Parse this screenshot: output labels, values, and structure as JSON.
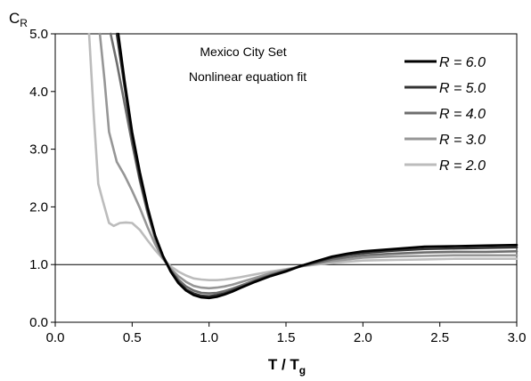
{
  "chart_data": {
    "type": "line",
    "ylabel_main": "C",
    "ylabel_sub": "R",
    "xlabel_main": "T / T",
    "xlabel_sub": "g",
    "annotation": [
      "Mexico City  Set",
      "Nonlinear equation fit"
    ],
    "xlim": [
      0.0,
      3.0
    ],
    "ylim": [
      0.0,
      5.0
    ],
    "xticks": [
      "0.0",
      "0.5",
      "1.0",
      "1.5",
      "2.0",
      "2.5",
      "3.0"
    ],
    "yticks": [
      "0.0",
      "1.0",
      "2.0",
      "3.0",
      "4.0",
      "5.0"
    ],
    "reference_line_y": 1.0,
    "grid": false,
    "legend_position": "top-right",
    "series": [
      {
        "name": "R = 6.0",
        "color": "#000000",
        "x": [
          0.41,
          0.45,
          0.5,
          0.55,
          0.6,
          0.65,
          0.7,
          0.75,
          0.8,
          0.85,
          0.9,
          0.95,
          1.0,
          1.05,
          1.1,
          1.15,
          1.2,
          1.3,
          1.4,
          1.5,
          1.6,
          1.7,
          1.8,
          1.9,
          2.0,
          2.2,
          2.4,
          2.6,
          2.8,
          3.0
        ],
        "y": [
          5.0,
          4.2,
          3.3,
          2.6,
          2.0,
          1.5,
          1.15,
          0.88,
          0.68,
          0.55,
          0.47,
          0.43,
          0.42,
          0.44,
          0.48,
          0.53,
          0.59,
          0.7,
          0.8,
          0.88,
          0.98,
          1.06,
          1.14,
          1.19,
          1.23,
          1.27,
          1.31,
          1.32,
          1.33,
          1.34
        ]
      },
      {
        "name": "R = 5.0",
        "color": "#333333",
        "x": [
          0.4,
          0.45,
          0.5,
          0.55,
          0.6,
          0.65,
          0.7,
          0.75,
          0.8,
          0.85,
          0.9,
          0.95,
          1.0,
          1.05,
          1.1,
          1.15,
          1.2,
          1.3,
          1.4,
          1.5,
          1.6,
          1.7,
          1.8,
          1.9,
          2.0,
          2.2,
          2.4,
          2.6,
          2.8,
          3.0
        ],
        "y": [
          5.0,
          4.1,
          3.2,
          2.5,
          1.95,
          1.5,
          1.15,
          0.9,
          0.7,
          0.57,
          0.5,
          0.46,
          0.45,
          0.47,
          0.5,
          0.55,
          0.6,
          0.71,
          0.81,
          0.89,
          0.98,
          1.05,
          1.12,
          1.17,
          1.2,
          1.24,
          1.27,
          1.28,
          1.29,
          1.3
        ]
      },
      {
        "name": "R = 4.0",
        "color": "#6e6e6e",
        "x": [
          0.36,
          0.4,
          0.45,
          0.5,
          0.55,
          0.6,
          0.65,
          0.7,
          0.75,
          0.8,
          0.85,
          0.9,
          0.95,
          1.0,
          1.05,
          1.1,
          1.15,
          1.2,
          1.3,
          1.4,
          1.5,
          1.6,
          1.7,
          1.8,
          1.9,
          2.0,
          2.2,
          2.4,
          2.6,
          2.8,
          3.0
        ],
        "y": [
          5.0,
          4.5,
          3.8,
          3.1,
          2.45,
          1.9,
          1.45,
          1.12,
          0.9,
          0.74,
          0.62,
          0.55,
          0.51,
          0.5,
          0.51,
          0.54,
          0.58,
          0.63,
          0.73,
          0.82,
          0.9,
          0.97,
          1.03,
          1.09,
          1.13,
          1.16,
          1.19,
          1.21,
          1.22,
          1.22,
          1.23
        ]
      },
      {
        "name": "R = 3.0",
        "color": "#969696",
        "x": [
          0.29,
          0.32,
          0.35,
          0.4,
          0.45,
          0.5,
          0.55,
          0.6,
          0.65,
          0.7,
          0.75,
          0.8,
          0.85,
          0.9,
          0.95,
          1.0,
          1.05,
          1.1,
          1.15,
          1.2,
          1.3,
          1.4,
          1.5,
          1.6,
          1.7,
          1.8,
          1.9,
          2.0,
          2.2,
          2.4,
          2.6,
          2.8,
          3.0
        ],
        "y": [
          5.0,
          4.2,
          3.3,
          2.78,
          2.55,
          2.28,
          1.98,
          1.65,
          1.35,
          1.1,
          0.93,
          0.8,
          0.7,
          0.63,
          0.6,
          0.59,
          0.6,
          0.62,
          0.65,
          0.69,
          0.77,
          0.85,
          0.91,
          0.97,
          1.02,
          1.06,
          1.09,
          1.12,
          1.14,
          1.15,
          1.16,
          1.16,
          1.16
        ]
      },
      {
        "name": "R = 2.0",
        "color": "#bcbcbc",
        "x": [
          0.22,
          0.25,
          0.28,
          0.31,
          0.35,
          0.38,
          0.42,
          0.46,
          0.5,
          0.55,
          0.6,
          0.65,
          0.7,
          0.75,
          0.8,
          0.85,
          0.9,
          0.95,
          1.0,
          1.05,
          1.1,
          1.15,
          1.2,
          1.3,
          1.4,
          1.5,
          1.6,
          1.7,
          1.8,
          1.9,
          2.0,
          2.2,
          2.4,
          2.6,
          2.8,
          3.0
        ],
        "y": [
          5.0,
          3.6,
          2.4,
          2.1,
          1.72,
          1.67,
          1.72,
          1.73,
          1.72,
          1.6,
          1.42,
          1.25,
          1.1,
          0.97,
          0.88,
          0.81,
          0.76,
          0.74,
          0.73,
          0.73,
          0.74,
          0.76,
          0.78,
          0.83,
          0.88,
          0.92,
          0.97,
          1.0,
          1.03,
          1.05,
          1.07,
          1.08,
          1.09,
          1.1,
          1.1,
          1.1
        ]
      }
    ]
  }
}
